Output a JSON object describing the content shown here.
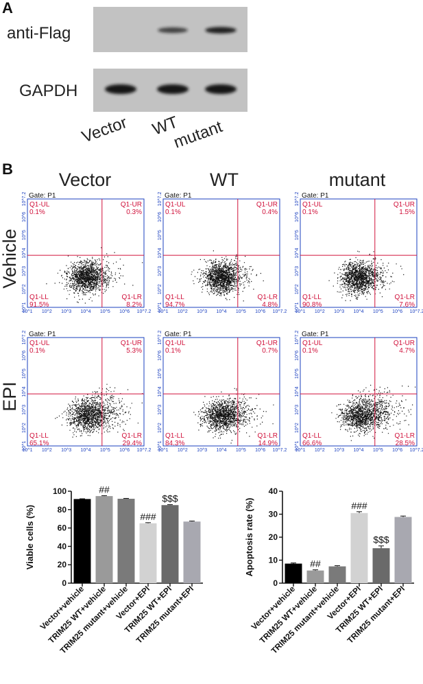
{
  "panel_a": {
    "label": "A",
    "blots": [
      {
        "name": "anti-Flag",
        "bands": [
          0,
          0.6,
          0.9
        ]
      },
      {
        "name": "GAPDH",
        "bands": [
          1,
          1,
          1
        ]
      }
    ],
    "lanes": [
      "Vector",
      "WT",
      "mutant"
    ]
  },
  "panel_b": {
    "label": "B",
    "columns": [
      "Vector",
      "WT",
      "mutant"
    ],
    "rows": [
      "Vehicle",
      "EPI"
    ],
    "gate": "Gate: P1",
    "axis_ticks": [
      "10^1",
      "10^2",
      "10^3",
      "10^4",
      "10^5",
      "10^6",
      "10^7.2"
    ],
    "plots": [
      {
        "UL": "0.1%",
        "UR": "0.3%",
        "LL": "91.5%",
        "LR": "8.2%"
      },
      {
        "UL": "0.1%",
        "UR": "0.4%",
        "LL": "94.7%",
        "LR": "4.8%"
      },
      {
        "UL": "0.1%",
        "UR": "1.5%",
        "LL": "90.8%",
        "LR": "7.6%"
      },
      {
        "UL": "0.1%",
        "UR": "5.3%",
        "LL": "65.1%",
        "LR": "29.4%"
      },
      {
        "UL": "0.1%",
        "UR": "0.7%",
        "LL": "84.3%",
        "LR": "14.9%"
      },
      {
        "UL": "0.1%",
        "UR": "4.7%",
        "LL": "66.6%",
        "LR": "28.5%"
      }
    ],
    "quadrant_names": {
      "UL": "Q1-UL",
      "UR": "Q1-UR",
      "LL": "Q1-LL",
      "LR": "Q1-LR"
    }
  },
  "chart_data": [
    {
      "type": "bar",
      "ylabel": "Viable cells (%)",
      "ylim": [
        0,
        100
      ],
      "yticks": [
        "0",
        "20",
        "40",
        "60",
        "80",
        "100"
      ],
      "categories": [
        "Vector+vehicle",
        "TRIM25 WT+vehicle",
        "TRIM25 mutant+vehicle",
        "Vector+EPI",
        "TRIM25 WT+EPI",
        "TRIM25 mutant+EPI"
      ],
      "values": [
        91.5,
        94.7,
        91.8,
        65.1,
        84.9,
        67.0
      ],
      "errors": [
        0.3,
        0.5,
        0.4,
        0.7,
        0.5,
        0.6
      ],
      "annotations": [
        "",
        "##",
        "",
        "###",
        "$$$",
        ""
      ],
      "colors": [
        "#000000",
        "#9a9a9a",
        "#7a7a7a",
        "#d2d2d2",
        "#6a6a6a",
        "#a8a8b0"
      ]
    },
    {
      "type": "bar",
      "ylabel": "Apoptosis rate (%)",
      "ylim": [
        0,
        40
      ],
      "yticks": [
        "0",
        "10",
        "20",
        "30",
        "40"
      ],
      "categories": [
        "Vector+vehicle",
        "TRIM25 WT+vehicle",
        "TRIM25 mutant+vehicle",
        "Vector+EPI",
        "TRIM25 WT+EPI",
        "TRIM25 mutant+EPI"
      ],
      "values": [
        8.5,
        5.5,
        7.3,
        30.5,
        15.2,
        28.8
      ],
      "errors": [
        0.3,
        0.3,
        0.3,
        0.6,
        1.0,
        0.4
      ],
      "annotations": [
        "",
        "##",
        "",
        "###",
        "$$$",
        ""
      ],
      "colors": [
        "#000000",
        "#9a9a9a",
        "#7a7a7a",
        "#d2d2d2",
        "#6a6a6a",
        "#a8a8b0"
      ]
    }
  ]
}
